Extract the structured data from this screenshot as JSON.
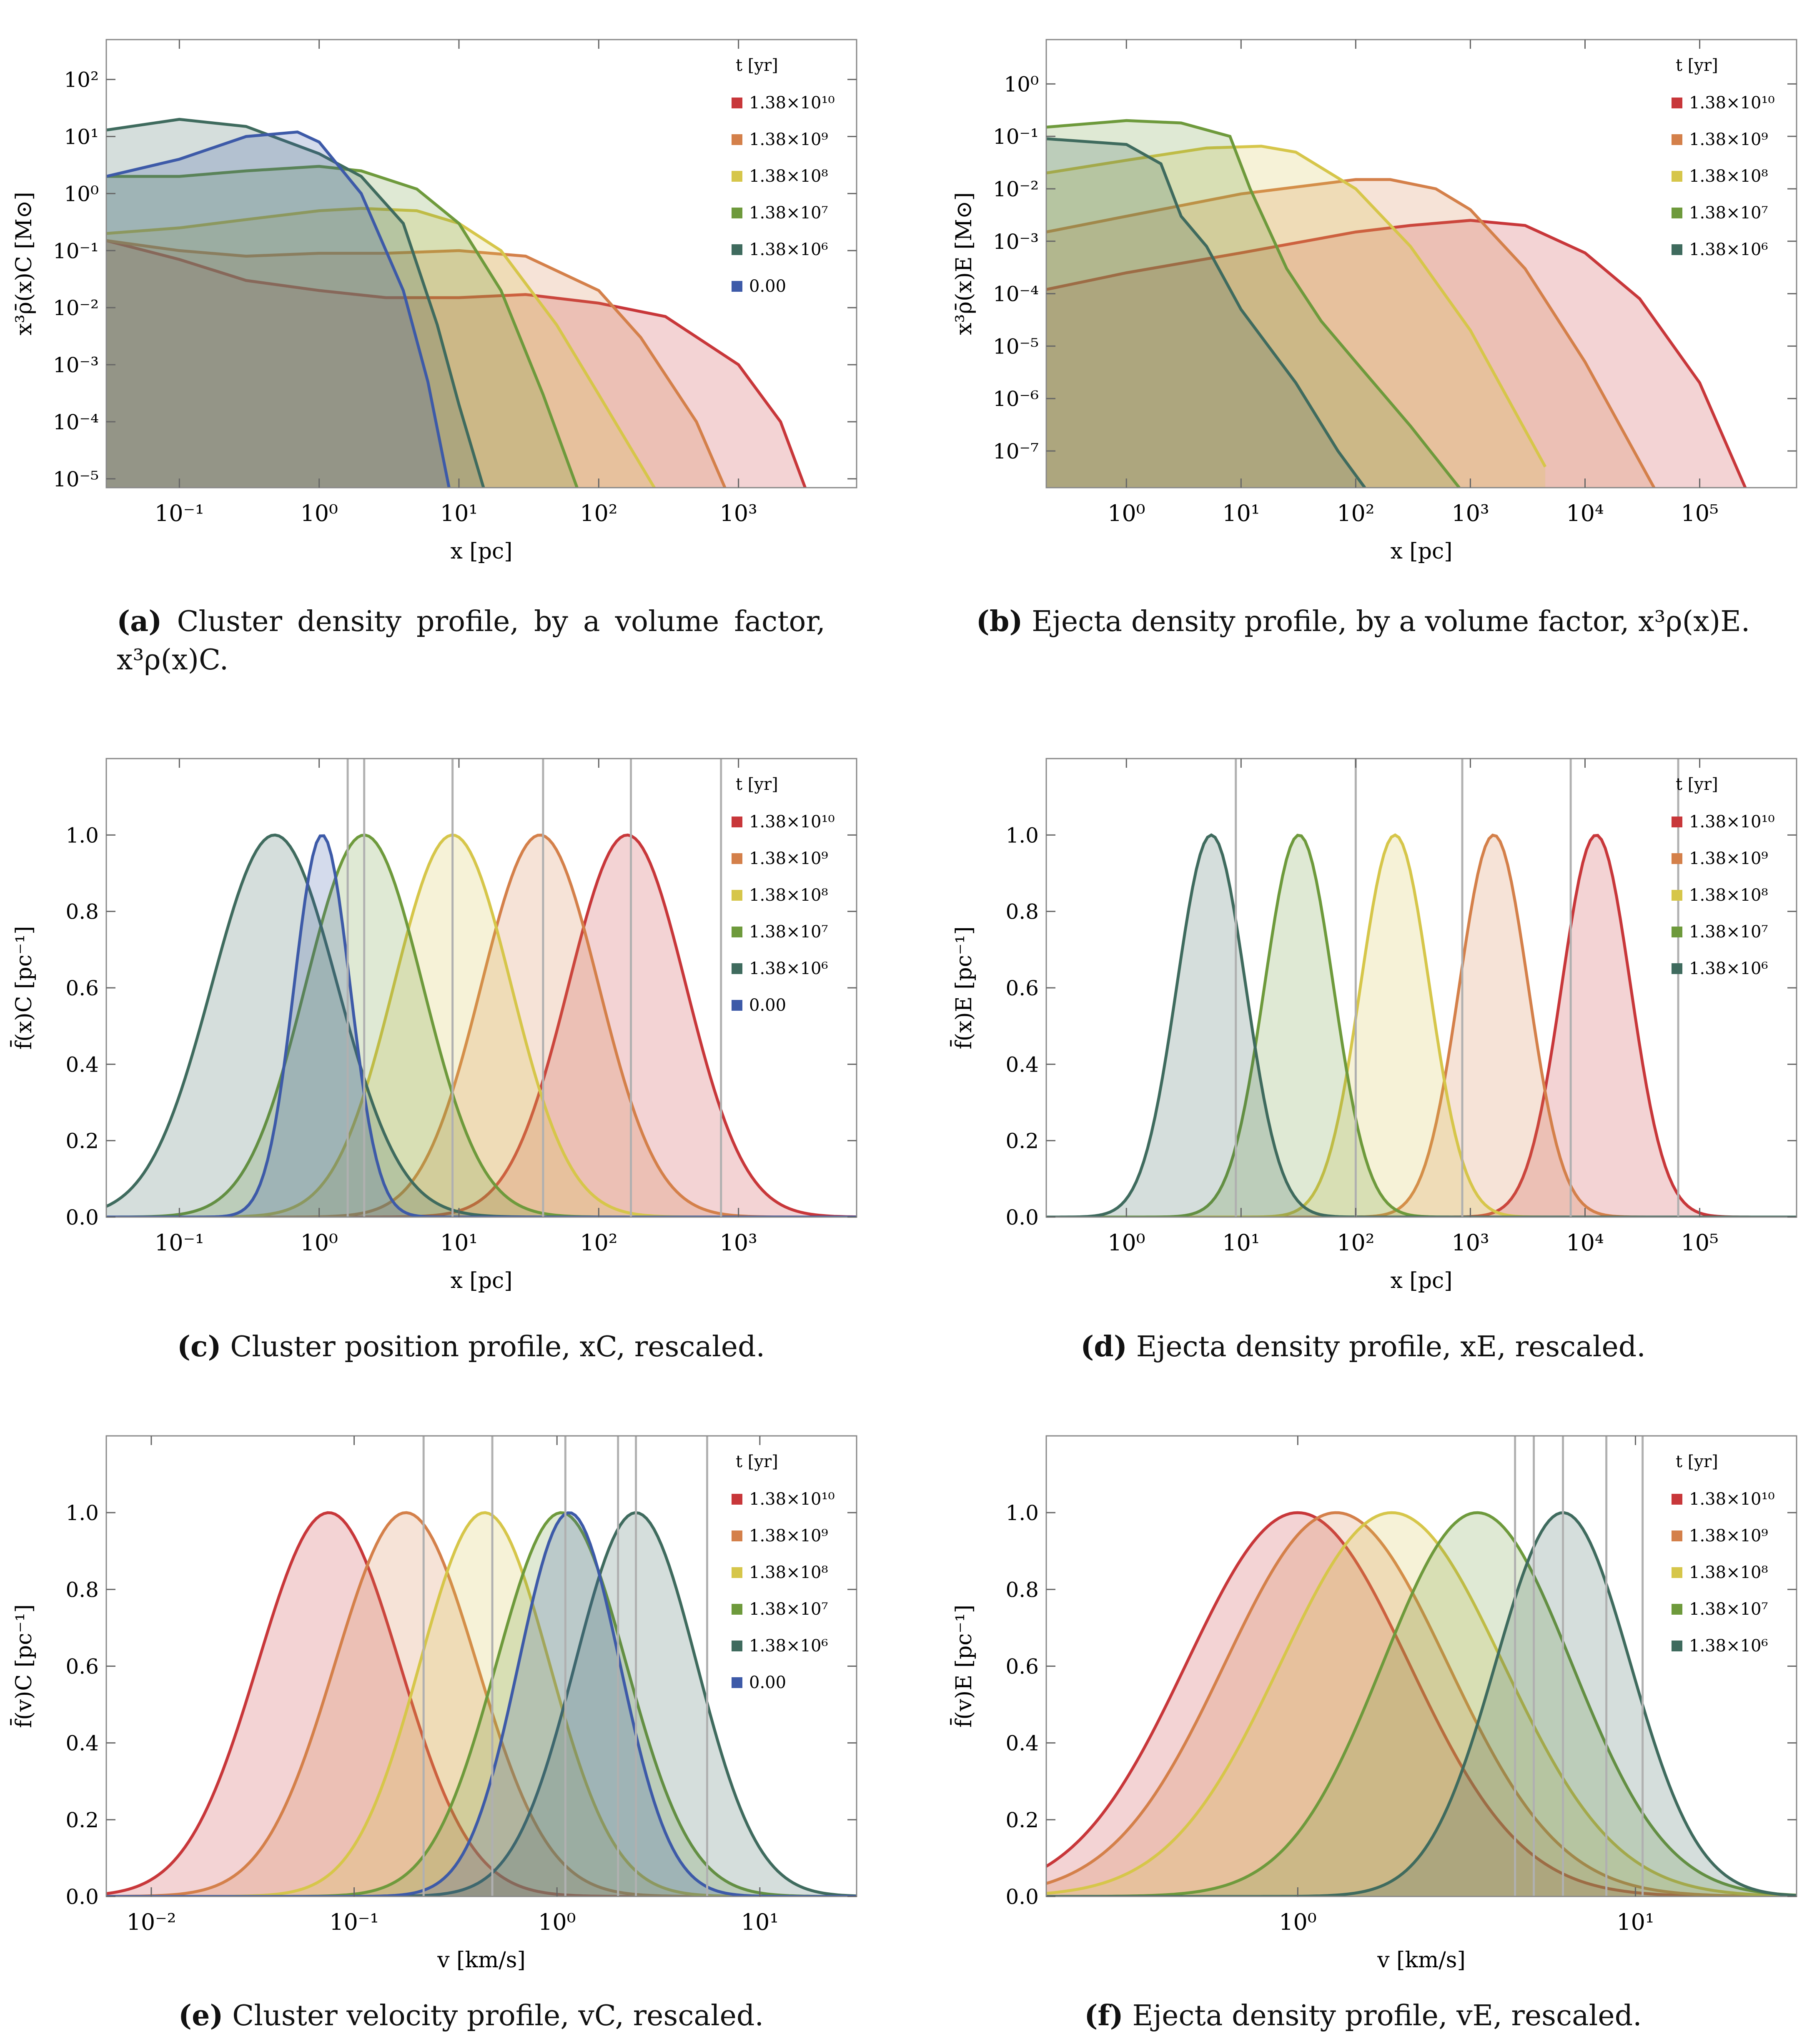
{
  "legend_title": "t [yr]",
  "colors": {
    "t1.38e10": "#c8373a",
    "t1.38e9": "#d4804a",
    "t1.38e8": "#d6c64a",
    "t1.38e7": "#6e9a3c",
    "t1.38e6": "#3f6b5e",
    "t0": "#3d5aa8"
  },
  "captions": {
    "a": {
      "letter": "(a)",
      "text": "Cluster density profile, by a volume factor, x³ρ(x)C."
    },
    "b": {
      "letter": "(b)",
      "text": "Ejecta density profile, by a volume factor, x³ρ(x)E."
    },
    "c": {
      "letter": "(c)",
      "text": "Cluster position profile, xC, rescaled."
    },
    "d": {
      "letter": "(d)",
      "text": "Ejecta density profile, xE, rescaled."
    },
    "e": {
      "letter": "(e)",
      "text": "Cluster velocity profile, vC, rescaled."
    },
    "f": {
      "letter": "(f)",
      "text": "Ejecta density profile, vE, rescaled."
    }
  },
  "chart_data": [
    {
      "id": "a",
      "type": "area",
      "xscale": "log",
      "yscale": "log",
      "xlabel": "x [pc]",
      "ylabel": "x³ρ̄(x)C [M⊙]",
      "xlim": [
        0.03,
        7000
      ],
      "ylim": [
        7e-06,
        500
      ],
      "xticks": [
        0.1,
        1,
        10,
        100,
        1000
      ],
      "xtick_labels": [
        "10⁻¹",
        "10⁰",
        "10¹",
        "10²",
        "10³"
      ],
      "yticks": [
        1e-05,
        0.0001,
        0.001,
        0.01,
        0.1,
        1,
        10,
        100
      ],
      "ytick_labels": [
        "10⁻⁵",
        "10⁻⁴",
        "10⁻³",
        "10⁻²",
        "10⁻¹",
        "10⁰",
        "10¹",
        "10²"
      ],
      "legend": {
        "title": "t [yr]",
        "position": "top-right",
        "entries": [
          "1.38×10¹⁰",
          "1.38×10⁹",
          "1.38×10⁸",
          "1.38×10⁷",
          "1.38×10⁶",
          "0.00"
        ]
      },
      "series": [
        {
          "name": "1.38×10¹⁰",
          "color": "#c8373a",
          "x": [
            0.03,
            0.1,
            0.3,
            1,
            3,
            10,
            30,
            100,
            300,
            1000,
            2000,
            3000
          ],
          "y": [
            0.15,
            0.07,
            0.03,
            0.02,
            0.015,
            0.015,
            0.017,
            0.012,
            0.007,
            0.001,
            0.0001,
            7e-06
          ]
        },
        {
          "name": "1.38×10⁹",
          "color": "#d4804a",
          "x": [
            0.03,
            0.1,
            0.3,
            1,
            3,
            10,
            30,
            100,
            200,
            500,
            800
          ],
          "y": [
            0.15,
            0.1,
            0.08,
            0.09,
            0.09,
            0.1,
            0.08,
            0.02,
            0.003,
            0.0001,
            7e-06
          ]
        },
        {
          "name": "1.38×10⁸",
          "color": "#d6c64a",
          "x": [
            0.03,
            0.1,
            0.3,
            1,
            2,
            5,
            10,
            20,
            50,
            100,
            250
          ],
          "y": [
            0.2,
            0.25,
            0.35,
            0.5,
            0.55,
            0.5,
            0.3,
            0.1,
            0.005,
            0.0003,
            7e-06
          ]
        },
        {
          "name": "1.38×10⁷",
          "color": "#6e9a3c",
          "x": [
            0.03,
            0.1,
            0.3,
            1,
            2,
            5,
            10,
            20,
            40,
            70
          ],
          "y": [
            2,
            2,
            2.5,
            3,
            2.5,
            1.2,
            0.3,
            0.02,
            0.0003,
            7e-06
          ]
        },
        {
          "name": "1.38×10⁶",
          "color": "#3f6b5e",
          "x": [
            0.03,
            0.1,
            0.3,
            1,
            2,
            4,
            7,
            10,
            15
          ],
          "y": [
            13,
            20,
            15,
            5,
            2,
            0.3,
            0.005,
            0.0002,
            7e-06
          ]
        },
        {
          "name": "0.00",
          "color": "#3d5aa8",
          "x": [
            0.03,
            0.1,
            0.3,
            0.7,
            1,
            2,
            4,
            6,
            8.5
          ],
          "y": [
            2,
            4,
            10,
            12,
            8,
            1,
            0.02,
            0.0005,
            7e-06
          ]
        }
      ]
    },
    {
      "id": "b",
      "type": "area",
      "xscale": "log",
      "yscale": "log",
      "xlabel": "x [pc]",
      "ylabel": "x³ρ̄(x)E [M⊙]",
      "xlim": [
        0.2,
        700000
      ],
      "ylim": [
        2e-08,
        7
      ],
      "xticks": [
        1,
        10,
        100,
        1000,
        10000,
        100000
      ],
      "xtick_labels": [
        "10⁰",
        "10¹",
        "10²",
        "10³",
        "10⁴",
        "10⁵"
      ],
      "yticks": [
        1e-07,
        1e-06,
        1e-05,
        0.0001,
        0.001,
        0.01,
        0.1,
        1
      ],
      "ytick_labels": [
        "10⁻⁷",
        "10⁻⁶",
        "10⁻⁵",
        "10⁻⁴",
        "10⁻³",
        "10⁻²",
        "10⁻¹",
        "10⁰"
      ],
      "legend": {
        "title": "t [yr]",
        "position": "top-right",
        "entries": [
          "1.38×10¹⁰",
          "1.38×10⁹",
          "1.38×10⁸",
          "1.38×10⁷",
          "1.38×10⁶"
        ]
      },
      "series": [
        {
          "name": "1.38×10¹⁰",
          "color": "#c8373a",
          "x": [
            0.2,
            1,
            10,
            100,
            300,
            1000,
            3000,
            10000,
            30000,
            100000,
            250000
          ],
          "y": [
            0.00012,
            0.00025,
            0.0006,
            0.0015,
            0.002,
            0.0025,
            0.002,
            0.0006,
            8e-05,
            2e-06,
            2e-08
          ]
        },
        {
          "name": "1.38×10⁹",
          "color": "#d4804a",
          "x": [
            0.2,
            1,
            10,
            100,
            200,
            500,
            1000,
            3000,
            10000,
            40000
          ],
          "y": [
            0.0015,
            0.003,
            0.008,
            0.015,
            0.015,
            0.01,
            0.004,
            0.0003,
            5e-06,
            2e-08
          ]
        },
        {
          "name": "1.38×10⁸",
          "color": "#d6c64a",
          "x": [
            0.2,
            1,
            5,
            15,
            30,
            100,
            300,
            1000,
            4500
          ],
          "y": [
            0.02,
            0.035,
            0.06,
            0.065,
            0.05,
            0.01,
            0.0008,
            2e-05,
            5e-08
          ]
        },
        {
          "name": "1.38×10⁷",
          "color": "#6e9a3c",
          "x": [
            0.2,
            1,
            3,
            8,
            12,
            25,
            50,
            100,
            300,
            800
          ],
          "y": [
            0.15,
            0.2,
            0.18,
            0.1,
            0.01,
            0.0003,
            3e-05,
            5e-06,
            3e-07,
            2e-08
          ]
        },
        {
          "name": "1.38×10⁶",
          "color": "#3f6b5e",
          "x": [
            0.2,
            1,
            2,
            3,
            5,
            10,
            30,
            70,
            120
          ],
          "y": [
            0.09,
            0.07,
            0.03,
            0.003,
            0.0008,
            5e-05,
            2e-06,
            1e-07,
            2e-08
          ]
        }
      ]
    },
    {
      "id": "c",
      "type": "area",
      "xscale": "log",
      "yscale": "linear",
      "xlabel": "x [pc]",
      "ylabel": "f̄(x)C [pc⁻¹]",
      "xlim": [
        0.03,
        7000
      ],
      "ylim": [
        0,
        1.2
      ],
      "xticks": [
        0.1,
        1,
        10,
        100,
        1000
      ],
      "xtick_labels": [
        "10⁻¹",
        "10⁰",
        "10¹",
        "10²",
        "10³"
      ],
      "yticks": [
        0,
        0.2,
        0.4,
        0.6,
        0.8,
        1.0
      ],
      "ytick_labels": [
        "0.0",
        "0.2",
        "0.4",
        "0.6",
        "0.8",
        "1.0"
      ],
      "vlines": [
        1.6,
        2.1,
        9,
        40,
        170,
        750
      ],
      "legend": {
        "title": "t [yr]",
        "position": "top-right",
        "entries": [
          "1.38×10¹⁰",
          "1.38×10⁹",
          "1.38×10⁸",
          "1.38×10⁷",
          "1.38×10⁶",
          "0.00"
        ]
      },
      "series": [
        {
          "name": "1.38×10¹⁰",
          "color": "#c8373a",
          "peak": 160,
          "sigma": 0.42
        },
        {
          "name": "1.38×10⁹",
          "color": "#d4804a",
          "peak": 38,
          "sigma": 0.42
        },
        {
          "name": "1.38×10⁸",
          "color": "#d6c64a",
          "peak": 9,
          "sigma": 0.42
        },
        {
          "name": "1.38×10⁷",
          "color": "#6e9a3c",
          "peak": 2.1,
          "sigma": 0.42
        },
        {
          "name": "1.38×10⁶",
          "color": "#3f6b5e",
          "peak": 0.48,
          "sigma": 0.45
        },
        {
          "name": "0.00",
          "color": "#3d5aa8",
          "peak": 1.05,
          "sigma": 0.2
        }
      ]
    },
    {
      "id": "d",
      "type": "area",
      "xscale": "log",
      "yscale": "linear",
      "xlabel": "x [pc]",
      "ylabel": "f̄(x)E [pc⁻¹]",
      "xlim": [
        0.2,
        700000
      ],
      "ylim": [
        0,
        1.2
      ],
      "xticks": [
        1,
        10,
        100,
        1000,
        10000,
        100000
      ],
      "xtick_labels": [
        "10⁰",
        "10¹",
        "10²",
        "10³",
        "10⁴",
        "10⁵"
      ],
      "yticks": [
        0,
        0.2,
        0.4,
        0.6,
        0.8,
        1.0
      ],
      "ytick_labels": [
        "0.0",
        "0.2",
        "0.4",
        "0.6",
        "0.8",
        "1.0"
      ],
      "vlines": [
        9,
        100,
        850,
        7500,
        65000
      ],
      "legend": {
        "title": "t [yr]",
        "position": "top-right",
        "entries": [
          "1.38×10¹⁰",
          "1.38×10⁹",
          "1.38×10⁸",
          "1.38×10⁷",
          "1.38×10⁶"
        ]
      },
      "series": [
        {
          "name": "1.38×10¹⁰",
          "color": "#c8373a",
          "peak": 12500,
          "sigma": 0.3
        },
        {
          "name": "1.38×10⁹",
          "color": "#d4804a",
          "peak": 1600,
          "sigma": 0.3
        },
        {
          "name": "1.38×10⁸",
          "color": "#d6c64a",
          "peak": 220,
          "sigma": 0.3
        },
        {
          "name": "1.38×10⁷",
          "color": "#6e9a3c",
          "peak": 32,
          "sigma": 0.3
        },
        {
          "name": "1.38×10⁶",
          "color": "#3f6b5e",
          "peak": 5.5,
          "sigma": 0.3
        }
      ]
    },
    {
      "id": "e",
      "type": "area",
      "xscale": "log",
      "yscale": "linear",
      "xlabel": "v [km/s]",
      "ylabel": "f̄(v)C [pc⁻¹]",
      "xlim": [
        0.006,
        30
      ],
      "ylim": [
        0,
        1.2
      ],
      "xticks": [
        0.01,
        0.1,
        1,
        10
      ],
      "xtick_labels": [
        "10⁻²",
        "10⁻¹",
        "10⁰",
        "10¹"
      ],
      "yticks": [
        0,
        0.2,
        0.4,
        0.6,
        0.8,
        1.0
      ],
      "ytick_labels": [
        "0.0",
        "0.2",
        "0.4",
        "0.6",
        "0.8",
        "1.0"
      ],
      "vlines": [
        0.22,
        0.48,
        1.1,
        2.0,
        2.45,
        5.5
      ],
      "legend": {
        "title": "t [yr]",
        "position": "top-right",
        "entries": [
          "1.38×10¹⁰",
          "1.38×10⁹",
          "1.38×10⁸",
          "1.38×10⁷",
          "1.38×10⁶",
          "0.00"
        ]
      },
      "series": [
        {
          "name": "1.38×10¹⁰",
          "color": "#c8373a",
          "peak": 0.075,
          "sigma": 0.35
        },
        {
          "name": "1.38×10⁹",
          "color": "#d4804a",
          "peak": 0.18,
          "sigma": 0.35
        },
        {
          "name": "1.38×10⁸",
          "color": "#d6c64a",
          "peak": 0.44,
          "sigma": 0.32
        },
        {
          "name": "1.38×10⁷",
          "color": "#6e9a3c",
          "peak": 1.05,
          "sigma": 0.32
        },
        {
          "name": "1.38×10⁶",
          "color": "#3f6b5e",
          "peak": 2.45,
          "sigma": 0.3
        },
        {
          "name": "0.00",
          "color": "#3d5aa8",
          "peak": 1.15,
          "sigma": 0.25
        }
      ]
    },
    {
      "id": "f",
      "type": "area",
      "xscale": "log",
      "yscale": "linear",
      "xlabel": "v [km/s]",
      "ylabel": "f̄(v)E [pc⁻¹]",
      "xlim": [
        0.18,
        30
      ],
      "ylim": [
        0,
        1.2
      ],
      "xticks": [
        1,
        10
      ],
      "xtick_labels": [
        "10⁰",
        "10¹"
      ],
      "yticks": [
        0,
        0.2,
        0.4,
        0.6,
        0.8,
        1.0
      ],
      "ytick_labels": [
        "0.0",
        "0.2",
        "0.4",
        "0.6",
        "0.8",
        "1.0"
      ],
      "vlines": [
        4.4,
        5.0,
        6.1,
        8.2,
        10.5
      ],
      "legend": {
        "title": "t [yr]",
        "position": "top-right",
        "entries": [
          "1.38×10¹⁰",
          "1.38×10⁹",
          "1.38×10⁸",
          "1.38×10⁷",
          "1.38×10⁶"
        ]
      },
      "series": [
        {
          "name": "1.38×10¹⁰",
          "color": "#c8373a",
          "peak": 1.0,
          "sigma": 0.33
        },
        {
          "name": "1.38×10⁹",
          "color": "#d4804a",
          "peak": 1.3,
          "sigma": 0.33
        },
        {
          "name": "1.38×10⁸",
          "color": "#d6c64a",
          "peak": 1.9,
          "sigma": 0.33
        },
        {
          "name": "1.38×10⁷",
          "color": "#6e9a3c",
          "peak": 3.4,
          "sigma": 0.28
        },
        {
          "name": "1.38×10⁶",
          "color": "#3f6b5e",
          "peak": 6.1,
          "sigma": 0.2
        }
      ]
    }
  ]
}
